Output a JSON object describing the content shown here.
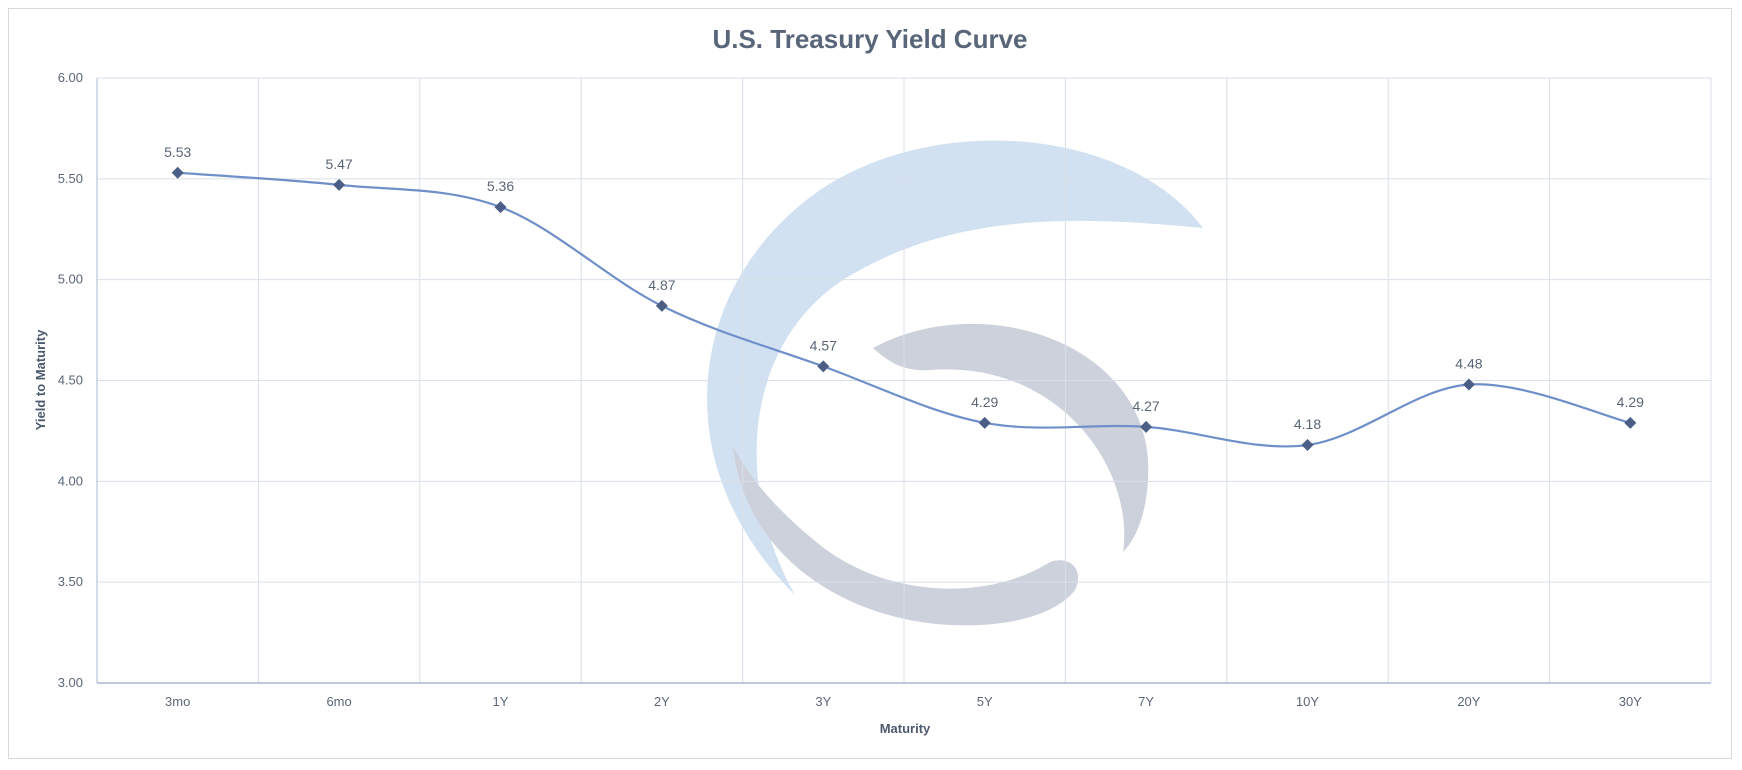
{
  "chart_data": {
    "type": "line",
    "title": "U.S. Treasury Yield Curve",
    "xlabel": "Maturity",
    "ylabel": "Yield to Maturity",
    "categories": [
      "3mo",
      "6mo",
      "1Y",
      "2Y",
      "3Y",
      "5Y",
      "7Y",
      "10Y",
      "20Y",
      "30Y"
    ],
    "series": [
      {
        "values": [
          5.53,
          5.47,
          5.36,
          4.87,
          4.57,
          4.29,
          4.27,
          4.18,
          4.48,
          4.29
        ]
      }
    ],
    "data_labels": [
      "5.53",
      "5.47",
      "5.36",
      "4.87",
      "4.57",
      "4.29",
      "4.27",
      "4.18",
      "4.48",
      "4.29"
    ],
    "y_ticks": [
      "3.00",
      "3.50",
      "4.00",
      "4.50",
      "5.00",
      "5.50",
      "6.00"
    ],
    "ylim": [
      3.0,
      6.0
    ],
    "grid": true,
    "smooth": true,
    "marker": "diamond",
    "colors": {
      "line": "#6f8fc9",
      "marker": "#4a5e86",
      "grid": "#d9dfe8",
      "axis": "#a9b8cf",
      "watermark_blue": "#c9dcef",
      "watermark_gray": "#c5cad6"
    },
    "watermark": "logo"
  }
}
